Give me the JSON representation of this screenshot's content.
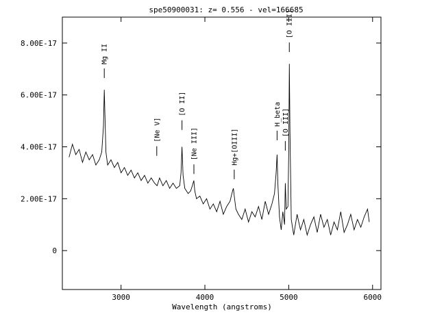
{
  "chart_data": {
    "type": "line",
    "title": "spe50900031: z= 0.556  -  vel=166685",
    "xlabel": "Wavelength (angstroms)",
    "ylabel": "",
    "xlim": [
      2300,
      6100
    ],
    "ylim": [
      -1.5e-17,
      9e-17
    ],
    "xticks": [
      3000,
      4000,
      5000,
      6000
    ],
    "xtick_labels": [
      "3000",
      "4000",
      "5000",
      "6000"
    ],
    "yticks": [
      0,
      2e-17,
      4e-17,
      6e-17,
      8e-17
    ],
    "ytick_labels": [
      "0",
      "2.00E-17",
      "4.00E-17",
      "6.00E-17",
      "8.00E-17"
    ],
    "grid": false,
    "series": [
      {
        "x": [
          2380,
          2420,
          2460,
          2500,
          2540,
          2580,
          2620,
          2660,
          2700,
          2740,
          2770,
          2790,
          2800,
          2810,
          2820,
          2840,
          2880,
          2920,
          2960,
          3000,
          3040,
          3080,
          3120,
          3160,
          3200,
          3240,
          3280,
          3320,
          3360,
          3400,
          3430,
          3460,
          3500,
          3540,
          3580,
          3620,
          3660,
          3700,
          3715,
          3727,
          3740,
          3760,
          3800,
          3830,
          3850,
          3868,
          3880,
          3900,
          3940,
          3980,
          4020,
          4060,
          4100,
          4140,
          4180,
          4220,
          4260,
          4300,
          4330,
          4340,
          4350,
          4370,
          4400,
          4440,
          4480,
          4520,
          4560,
          4600,
          4640,
          4680,
          4720,
          4760,
          4800,
          4830,
          4850,
          4861,
          4870,
          4890,
          4910,
          4930,
          4950,
          4959,
          4970,
          4990,
          5000,
          5007,
          5015,
          5030,
          5060,
          5100,
          5140,
          5180,
          5220,
          5260,
          5300,
          5340,
          5380,
          5420,
          5460,
          5500,
          5540,
          5580,
          5620,
          5660,
          5700,
          5740,
          5780,
          5820,
          5860,
          5900,
          5940,
          5960
        ],
        "y": [
          3.6e-17,
          4.1e-17,
          3.7e-17,
          3.9e-17,
          3.4e-17,
          3.8e-17,
          3.5e-17,
          3.7e-17,
          3.3e-17,
          3.5e-17,
          3.8e-17,
          4.8e-17,
          6.2e-17,
          5e-17,
          3.8e-17,
          3.3e-17,
          3.5e-17,
          3.2e-17,
          3.4e-17,
          3e-17,
          3.2e-17,
          2.9e-17,
          3.1e-17,
          2.8e-17,
          3e-17,
          2.7e-17,
          2.9e-17,
          2.6e-17,
          2.8e-17,
          2.6e-17,
          2.5e-17,
          2.8e-17,
          2.5e-17,
          2.7e-17,
          2.4e-17,
          2.6e-17,
          2.4e-17,
          2.5e-17,
          3e-17,
          4e-17,
          2.9e-17,
          2.4e-17,
          2.2e-17,
          2.3e-17,
          2.5e-17,
          2.7e-17,
          2.3e-17,
          2e-17,
          2.1e-17,
          1.8e-17,
          2e-17,
          1.6e-17,
          1.8e-17,
          1.5e-17,
          1.9e-17,
          1.4e-17,
          1.7e-17,
          1.9e-17,
          2.3e-17,
          2.4e-17,
          2.1e-17,
          1.6e-17,
          1.4e-17,
          1.2e-17,
          1.6e-17,
          1.1e-17,
          1.5e-17,
          1.3e-17,
          1.7e-17,
          1.2e-17,
          1.9e-17,
          1.4e-17,
          1.8e-17,
          2.2e-17,
          3e-17,
          3.7e-17,
          2.6e-17,
          1.3e-17,
          8e-18,
          1.5e-17,
          1e-17,
          2.6e-17,
          1.6e-17,
          1.7e-17,
          3.8e-17,
          7.2e-17,
          4.6e-17,
          1.2e-17,
          6e-18,
          1.4e-17,
          8e-18,
          1.2e-17,
          6e-18,
          1e-17,
          1.3e-17,
          7e-18,
          1.4e-17,
          9e-18,
          1.2e-17,
          6e-18,
          1.1e-17,
          8e-18,
          1.5e-17,
          7e-18,
          1e-17,
          1.4e-17,
          8e-18,
          1.2e-17,
          9e-18,
          1.3e-17,
          1.6e-17,
          1.1e-17
        ]
      }
    ],
    "line_markers": [
      {
        "label": "Mg II",
        "x": 2800,
        "y": 6.6e-17
      },
      {
        "label": "[Ne V]",
        "x": 3426,
        "y": 3.6e-17
      },
      {
        "label": "[O II]",
        "x": 3727,
        "y": 4.6e-17
      },
      {
        "label": "[Ne III]",
        "x": 3869,
        "y": 2.9e-17
      },
      {
        "label": "Hg+[OIII]",
        "x": 4350,
        "y": 2.7e-17
      },
      {
        "label": "H_beta",
        "x": 4861,
        "y": 4.2e-17
      },
      {
        "label": "[O III]",
        "x": 4959,
        "y": 3.8e-17
      },
      {
        "label": "[O III]",
        "x": 5007,
        "y": 7.6e-17
      }
    ]
  }
}
